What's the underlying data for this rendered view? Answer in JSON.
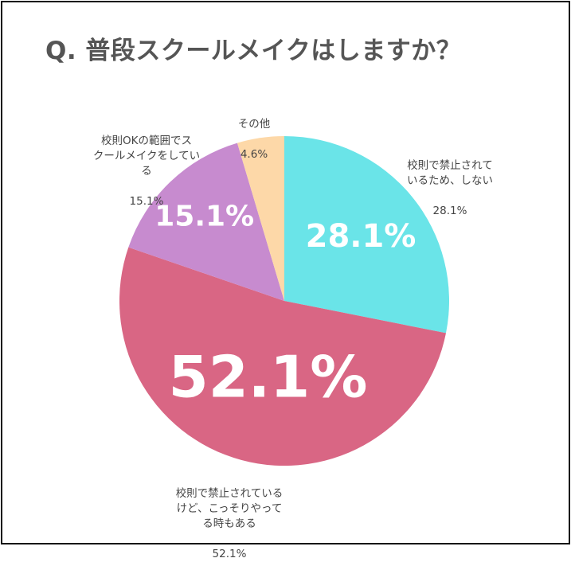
{
  "title": "Q. 普段スクールメイクはしますか？",
  "chart_data": {
    "type": "pie",
    "title": "Q. 普段スクールメイクはしますか？",
    "start_angle_deg": 0,
    "direction": "clockwise",
    "slices": [
      {
        "label": "校則で禁止されて\nいるため、しない",
        "value": 28.1,
        "display": "28.1%",
        "color": "#6ae4e8"
      },
      {
        "label": "校則で禁止されている\nけど、こっそりやって\nる時もある",
        "value": 52.1,
        "display": "52.1%",
        "color": "#d96684"
      },
      {
        "label": "校則OKの範囲でス\nクールメイクをしてい\nる",
        "value": 15.1,
        "display": "15.1%",
        "color": "#c78bcf"
      },
      {
        "label": "その他",
        "value": 4.6,
        "display": "4.6%",
        "color": "#fdd8a8"
      }
    ]
  }
}
